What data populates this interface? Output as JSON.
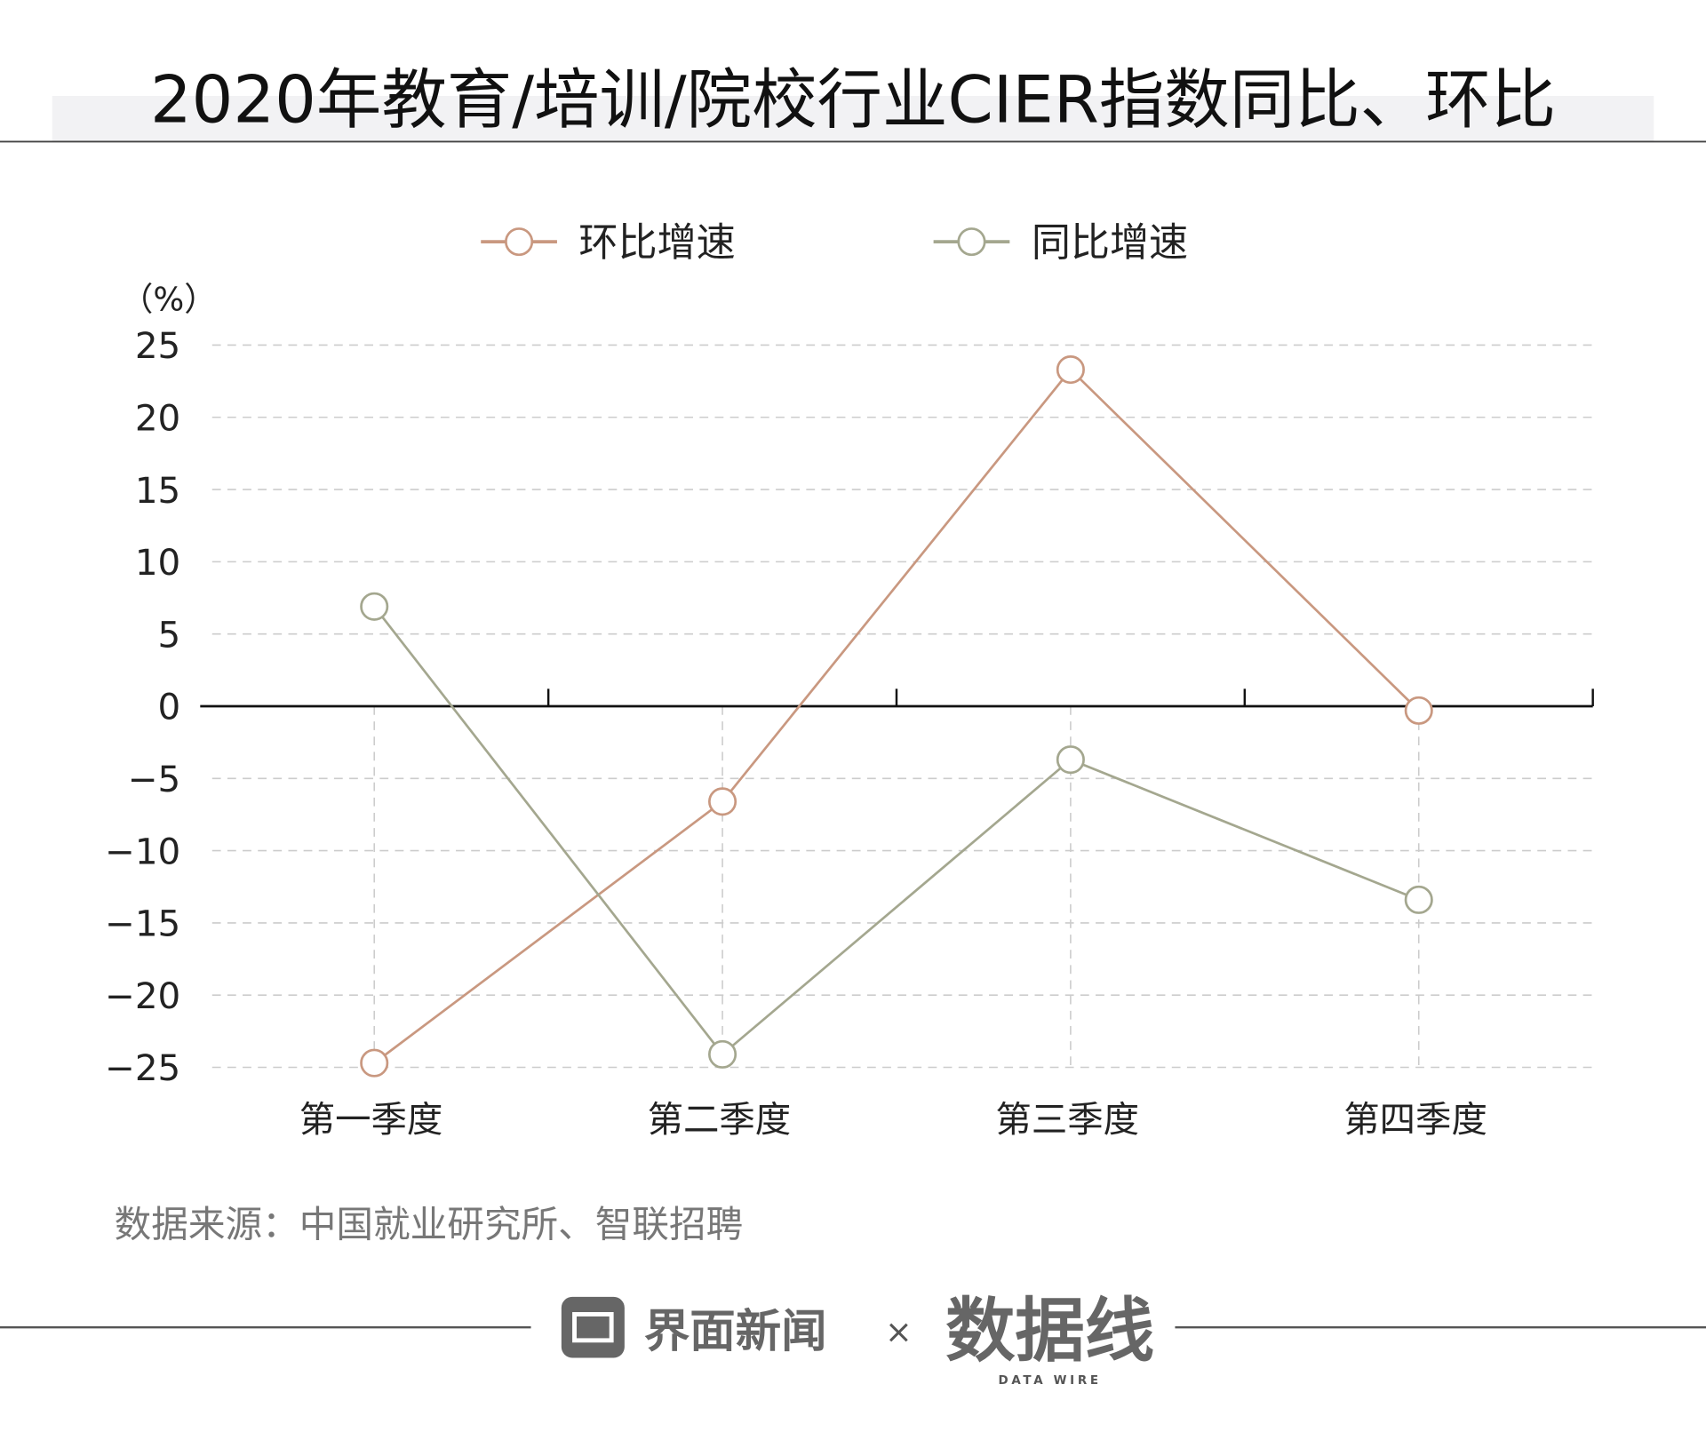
{
  "chart_data": {
    "type": "line",
    "title": "2020年教育/培训/院校行业CIER指数同比、环比",
    "ylabel": "（%）",
    "xlabel": "",
    "categories": [
      "第一季度",
      "第二季度",
      "第三季度",
      "第四季度"
    ],
    "ylim": [
      -25,
      25
    ],
    "yticks": [
      25,
      20,
      15,
      10,
      5,
      0,
      -5,
      -10,
      -15,
      -20,
      -25
    ],
    "ytick_labels": [
      "25",
      "20",
      "15",
      "10",
      "5",
      "0",
      "−5",
      "−10",
      "−15",
      "−20",
      "−25"
    ],
    "grid": true,
    "legend_position": "top-center",
    "series": [
      {
        "name": "环比增速",
        "color": "#c99880",
        "values": [
          -24.7,
          -6.6,
          23.3,
          -0.3
        ]
      },
      {
        "name": "同比增速",
        "color": "#a4a78f",
        "values": [
          6.9,
          -24.1,
          -3.7,
          -13.4
        ]
      }
    ]
  },
  "source": "数据来源：中国就业研究所、智联招聘",
  "footer": {
    "brand": "界面新闻",
    "times": "×",
    "partner": "数据线",
    "partner_sub": "DATA WIRE"
  }
}
